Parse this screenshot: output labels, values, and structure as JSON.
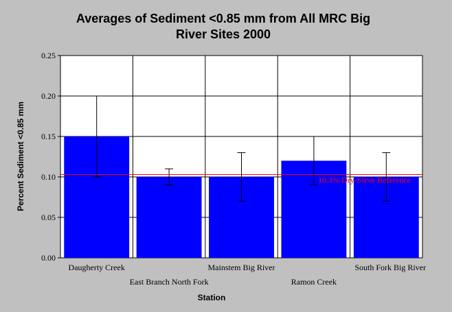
{
  "chart_data": {
    "type": "bar",
    "title_lines": [
      "Averages of Sediment <0.85 mm from All MRC Big",
      "River Sites 2000"
    ],
    "xlabel": "Station",
    "ylabel": "Percent Sediment <0.85 mm",
    "ylim": [
      0,
      0.25
    ],
    "yticks": [
      "0.00",
      "0.05",
      "0.10",
      "0.15",
      "0.20",
      "0.25"
    ],
    "categories": [
      "Daugherty Creek",
      "East Branch North Fork",
      "Mainstem Big River",
      "Ramon Creek",
      "South Fork Big River"
    ],
    "values": [
      0.15,
      0.1,
      0.1,
      0.12,
      0.1
    ],
    "error_low": [
      0.1,
      0.09,
      0.07,
      0.09,
      0.07
    ],
    "error_high": [
      0.2,
      0.11,
      0.13,
      0.15,
      0.13
    ],
    "reference_line": {
      "value": 0.103,
      "label": "10.3% Dry-Sieve Reference",
      "color": "#ff0000"
    },
    "bar_color": "#0000ff",
    "grid": true
  }
}
